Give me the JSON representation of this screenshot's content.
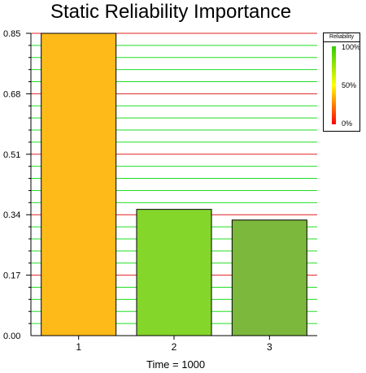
{
  "chart_data": {
    "type": "bar",
    "title": "Static Reliability Importance",
    "categories": [
      "1",
      "2",
      "3"
    ],
    "values": [
      0.85,
      0.355,
      0.325
    ],
    "bar_colors": [
      "#FDBA19",
      "#84D62B",
      "#7CB83C"
    ],
    "xlabel": "Time = 1000",
    "ylabel": "",
    "ylim": [
      0,
      0.85
    ],
    "yticks": [
      "0.85",
      "0.68",
      "0.51",
      "0.34",
      "0.17",
      "0.00"
    ],
    "grid": true,
    "grid_major_color": "#E02020",
    "grid_minor_color": "#22DD22",
    "legend": {
      "title": "Reliability",
      "placement": "right",
      "labels": [
        "100%",
        "50%",
        "0%"
      ],
      "gradient": [
        "#33CC00",
        "#FFFF00",
        "#FF0000"
      ]
    }
  }
}
